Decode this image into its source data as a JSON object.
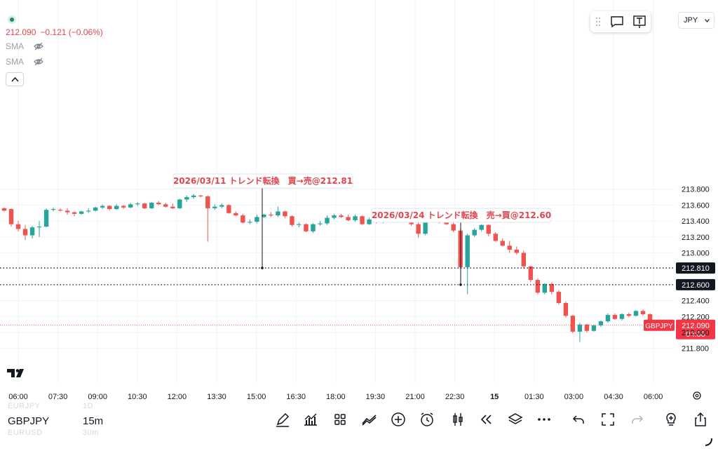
{
  "legend": {
    "price": "212.090",
    "change": "−0.121 (−0.06%)",
    "indicators": [
      "SMA",
      "SMA"
    ]
  },
  "currency_select": "JPY",
  "price_scale": {
    "ticks": [
      "213.800",
      "213.600",
      "213.400",
      "213.200",
      "213.000",
      "212.400",
      "212.200",
      "212.000",
      "211.800"
    ],
    "line_labels": [
      "212.810",
      "212.600"
    ],
    "current_symbol": "GBPJPY",
    "current_price": "212.090",
    "countdown": "04:00"
  },
  "time_axis": {
    "labels": [
      "06:00",
      "07:30",
      "09:00",
      "10:30",
      "12:00",
      "13:30",
      "15:00",
      "16:30",
      "18:00",
      "19:30",
      "21:00",
      "22:30",
      "15",
      "01:30",
      "03:00",
      "04:30",
      "06:00"
    ]
  },
  "annotations": [
    {
      "text": "2026/03/11 トレンド転換　買→売@212.81",
      "price": 212.81
    },
    {
      "text": "2026/03/24 トレンド転換　売→買@212.60",
      "price": 212.6
    }
  ],
  "bottom_bar": {
    "symbol": "GBPJPY",
    "timeframe": "15m",
    "ghost_symbols": [
      "EURJPY",
      "EURUSD"
    ],
    "ghost_timeframes": [
      "1D",
      "30m"
    ]
  },
  "colors": {
    "up": "#26a69a",
    "down": "#ef5350",
    "accent": "#f23645"
  },
  "chart_data": {
    "type": "candlestick",
    "price_range": [
      211.7,
      213.9
    ],
    "horizontal_lines": [
      212.81,
      212.6
    ],
    "current_price": 212.09,
    "candles": [
      {
        "o": 213.56,
        "h": 213.57,
        "l": 213.52,
        "c": 213.53
      },
      {
        "o": 213.55,
        "h": 213.56,
        "l": 213.33,
        "c": 213.36
      },
      {
        "o": 213.36,
        "h": 213.4,
        "l": 213.27,
        "c": 213.3
      },
      {
        "o": 213.3,
        "h": 213.35,
        "l": 213.16,
        "c": 213.22
      },
      {
        "o": 213.22,
        "h": 213.34,
        "l": 213.18,
        "c": 213.32
      },
      {
        "o": 213.32,
        "h": 213.4,
        "l": 213.2,
        "c": 213.33
      },
      {
        "o": 213.33,
        "h": 213.56,
        "l": 213.32,
        "c": 213.54
      },
      {
        "o": 213.54,
        "h": 213.57,
        "l": 213.52,
        "c": 213.55
      },
      {
        "o": 213.54,
        "h": 213.56,
        "l": 213.52,
        "c": 213.53
      },
      {
        "o": 213.53,
        "h": 213.56,
        "l": 213.48,
        "c": 213.51
      },
      {
        "o": 213.51,
        "h": 213.52,
        "l": 213.46,
        "c": 213.49
      },
      {
        "o": 213.49,
        "h": 213.53,
        "l": 213.48,
        "c": 213.52
      },
      {
        "o": 213.52,
        "h": 213.56,
        "l": 213.5,
        "c": 213.53
      },
      {
        "o": 213.53,
        "h": 213.58,
        "l": 213.52,
        "c": 213.57
      },
      {
        "o": 213.57,
        "h": 213.61,
        "l": 213.55,
        "c": 213.59
      },
      {
        "o": 213.59,
        "h": 213.6,
        "l": 213.53,
        "c": 213.55
      },
      {
        "o": 213.55,
        "h": 213.61,
        "l": 213.54,
        "c": 213.59
      },
      {
        "o": 213.59,
        "h": 213.6,
        "l": 213.55,
        "c": 213.57
      },
      {
        "o": 213.57,
        "h": 213.63,
        "l": 213.56,
        "c": 213.61
      },
      {
        "o": 213.61,
        "h": 213.64,
        "l": 213.59,
        "c": 213.62
      },
      {
        "o": 213.62,
        "h": 213.63,
        "l": 213.55,
        "c": 213.56
      },
      {
        "o": 213.56,
        "h": 213.64,
        "l": 213.55,
        "c": 213.63
      },
      {
        "o": 213.63,
        "h": 213.65,
        "l": 213.6,
        "c": 213.61
      },
      {
        "o": 213.61,
        "h": 213.63,
        "l": 213.57,
        "c": 213.58
      },
      {
        "o": 213.58,
        "h": 213.62,
        "l": 213.55,
        "c": 213.56
      },
      {
        "o": 213.56,
        "h": 213.68,
        "l": 213.55,
        "c": 213.67
      },
      {
        "o": 213.67,
        "h": 213.72,
        "l": 213.64,
        "c": 213.7
      },
      {
        "o": 213.7,
        "h": 213.74,
        "l": 213.68,
        "c": 213.72
      },
      {
        "o": 213.72,
        "h": 213.73,
        "l": 213.7,
        "c": 213.71
      },
      {
        "o": 213.71,
        "h": 213.72,
        "l": 213.14,
        "c": 213.56
      },
      {
        "o": 213.56,
        "h": 213.61,
        "l": 213.54,
        "c": 213.58
      },
      {
        "o": 213.58,
        "h": 213.62,
        "l": 213.56,
        "c": 213.6
      },
      {
        "o": 213.6,
        "h": 213.61,
        "l": 213.49,
        "c": 213.5
      },
      {
        "o": 213.5,
        "h": 213.52,
        "l": 213.46,
        "c": 213.47
      },
      {
        "o": 213.47,
        "h": 213.49,
        "l": 213.37,
        "c": 213.38
      },
      {
        "o": 213.38,
        "h": 213.42,
        "l": 213.36,
        "c": 213.39
      },
      {
        "o": 213.39,
        "h": 213.48,
        "l": 213.37,
        "c": 213.45
      },
      {
        "o": 213.45,
        "h": 213.49,
        "l": 213.44,
        "c": 213.48
      },
      {
        "o": 213.48,
        "h": 213.51,
        "l": 213.45,
        "c": 213.47
      },
      {
        "o": 213.47,
        "h": 213.58,
        "l": 213.45,
        "c": 213.52
      },
      {
        "o": 213.52,
        "h": 213.53,
        "l": 213.44,
        "c": 213.46
      },
      {
        "o": 213.46,
        "h": 213.47,
        "l": 213.33,
        "c": 213.35
      },
      {
        "o": 213.35,
        "h": 213.38,
        "l": 213.32,
        "c": 213.36
      },
      {
        "o": 213.36,
        "h": 213.37,
        "l": 213.26,
        "c": 213.27
      },
      {
        "o": 213.27,
        "h": 213.37,
        "l": 213.25,
        "c": 213.36
      },
      {
        "o": 213.36,
        "h": 213.4,
        "l": 213.34,
        "c": 213.37
      },
      {
        "o": 213.37,
        "h": 213.47,
        "l": 213.35,
        "c": 213.44
      },
      {
        "o": 213.44,
        "h": 213.49,
        "l": 213.42,
        "c": 213.47
      },
      {
        "o": 213.47,
        "h": 213.49,
        "l": 213.44,
        "c": 213.45
      },
      {
        "o": 213.45,
        "h": 213.48,
        "l": 213.4,
        "c": 213.41
      },
      {
        "o": 213.41,
        "h": 213.48,
        "l": 213.39,
        "c": 213.46
      },
      {
        "o": 213.46,
        "h": 213.47,
        "l": 213.35,
        "c": 213.36
      },
      {
        "o": 213.36,
        "h": 213.44,
        "l": 213.35,
        "c": 213.42
      },
      {
        "o": 213.42,
        "h": 213.44,
        "l": 213.37,
        "c": 213.38
      },
      {
        "o": 213.38,
        "h": 213.44,
        "l": 213.37,
        "c": 213.43
      },
      {
        "o": 213.43,
        "h": 213.44,
        "l": 213.38,
        "c": 213.4
      },
      {
        "o": 213.4,
        "h": 213.45,
        "l": 213.39,
        "c": 213.44
      },
      {
        "o": 213.44,
        "h": 213.46,
        "l": 213.41,
        "c": 213.42
      },
      {
        "o": 213.42,
        "h": 213.45,
        "l": 213.34,
        "c": 213.36
      },
      {
        "o": 213.36,
        "h": 213.43,
        "l": 213.19,
        "c": 213.24
      },
      {
        "o": 213.24,
        "h": 213.46,
        "l": 213.22,
        "c": 213.45
      },
      {
        "o": 213.45,
        "h": 213.47,
        "l": 213.38,
        "c": 213.39
      },
      {
        "o": 213.39,
        "h": 213.43,
        "l": 213.37,
        "c": 213.4
      },
      {
        "o": 213.4,
        "h": 213.42,
        "l": 213.35,
        "c": 213.36
      },
      {
        "o": 213.36,
        "h": 213.38,
        "l": 213.26,
        "c": 213.28
      },
      {
        "o": 213.28,
        "h": 213.3,
        "l": 212.8,
        "c": 212.82
      },
      {
        "o": 212.82,
        "h": 213.24,
        "l": 212.48,
        "c": 213.22
      },
      {
        "o": 213.22,
        "h": 213.31,
        "l": 213.2,
        "c": 213.29
      },
      {
        "o": 213.29,
        "h": 213.36,
        "l": 213.27,
        "c": 213.35
      },
      {
        "o": 213.35,
        "h": 213.36,
        "l": 213.21,
        "c": 213.24
      },
      {
        "o": 213.24,
        "h": 213.26,
        "l": 213.14,
        "c": 213.15
      },
      {
        "o": 213.15,
        "h": 213.18,
        "l": 213.08,
        "c": 213.09
      },
      {
        "o": 213.09,
        "h": 213.15,
        "l": 213.0,
        "c": 213.04
      },
      {
        "o": 213.04,
        "h": 213.08,
        "l": 212.98,
        "c": 213.0
      },
      {
        "o": 213.0,
        "h": 213.03,
        "l": 212.8,
        "c": 212.83
      },
      {
        "o": 212.83,
        "h": 212.84,
        "l": 212.63,
        "c": 212.66
      },
      {
        "o": 212.66,
        "h": 212.68,
        "l": 212.48,
        "c": 212.5
      },
      {
        "o": 212.5,
        "h": 212.62,
        "l": 212.48,
        "c": 212.61
      },
      {
        "o": 212.61,
        "h": 212.63,
        "l": 212.48,
        "c": 212.51
      },
      {
        "o": 212.51,
        "h": 212.53,
        "l": 212.35,
        "c": 212.37
      },
      {
        "o": 212.37,
        "h": 212.39,
        "l": 212.19,
        "c": 212.21
      },
      {
        "o": 212.21,
        "h": 212.22,
        "l": 211.99,
        "c": 212.01
      },
      {
        "o": 212.01,
        "h": 212.12,
        "l": 211.88,
        "c": 212.1
      },
      {
        "o": 212.1,
        "h": 212.11,
        "l": 212.0,
        "c": 212.02
      },
      {
        "o": 212.02,
        "h": 212.1,
        "l": 212.01,
        "c": 212.09
      },
      {
        "o": 212.09,
        "h": 212.15,
        "l": 212.07,
        "c": 212.14
      },
      {
        "o": 212.14,
        "h": 212.24,
        "l": 212.12,
        "c": 212.22
      },
      {
        "o": 212.22,
        "h": 212.24,
        "l": 212.16,
        "c": 212.17
      },
      {
        "o": 212.17,
        "h": 212.24,
        "l": 212.15,
        "c": 212.23
      },
      {
        "o": 212.23,
        "h": 212.25,
        "l": 212.19,
        "c": 212.21
      },
      {
        "o": 212.21,
        "h": 212.28,
        "l": 212.2,
        "c": 212.27
      },
      {
        "o": 212.27,
        "h": 212.29,
        "l": 212.21,
        "c": 212.23
      },
      {
        "o": 212.23,
        "h": 212.24,
        "l": 212.09,
        "c": 212.09
      }
    ]
  }
}
